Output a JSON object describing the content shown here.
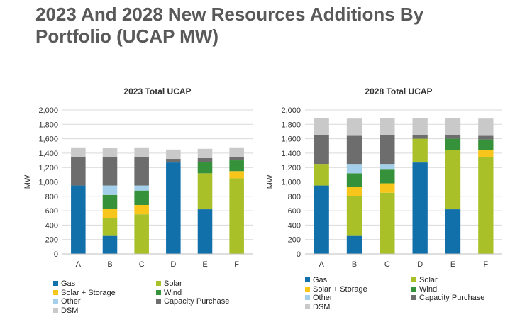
{
  "page": {
    "title": "2023 And 2028 New Resources Additions By Portfolio (UCAP MW)"
  },
  "colors": {
    "Gas": "#1170aa",
    "Solar": "#a9c028",
    "Solar + Storage": "#f8c61a",
    "Wind": "#35913a",
    "Other": "#a4cfea",
    "Capacity Purchase": "#6d6d6d",
    "DSM": "#c9c9c9"
  },
  "legend_order": [
    "Gas",
    "Solar",
    "Solar + Storage",
    "Wind",
    "Other",
    "Capacity Purchase",
    "DSM"
  ],
  "chart_data": [
    {
      "type": "bar",
      "stacked": true,
      "title": "2023 Total UCAP",
      "ylabel": "MW",
      "ylim": [
        0,
        2000
      ],
      "yticks": [
        "0",
        "200",
        "400",
        "600",
        "800",
        "1,000",
        "1,200",
        "1,400",
        "1,600",
        "1,800",
        "2,000"
      ],
      "grid": true,
      "legend_position": "bottom",
      "categories": [
        "A",
        "B",
        "C",
        "D",
        "E",
        "F"
      ],
      "series": [
        {
          "name": "Gas",
          "values": [
            950,
            250,
            0,
            1270,
            620,
            0
          ]
        },
        {
          "name": "Solar",
          "values": [
            0,
            250,
            550,
            0,
            500,
            1050
          ]
        },
        {
          "name": "Solar + Storage",
          "values": [
            0,
            130,
            130,
            0,
            0,
            100
          ]
        },
        {
          "name": "Wind",
          "values": [
            0,
            190,
            200,
            0,
            160,
            150
          ]
        },
        {
          "name": "Other",
          "values": [
            0,
            130,
            70,
            0,
            0,
            0
          ]
        },
        {
          "name": "Capacity Purchase",
          "values": [
            400,
            390,
            400,
            50,
            50,
            50
          ]
        },
        {
          "name": "DSM",
          "values": [
            130,
            130,
            130,
            130,
            130,
            130
          ]
        }
      ]
    },
    {
      "type": "bar",
      "stacked": true,
      "title": "2028 Total UCAP",
      "ylabel": "MW",
      "ylim": [
        0,
        2000
      ],
      "yticks": [
        "0",
        "200",
        "400",
        "600",
        "800",
        "1,000",
        "1,200",
        "1,400",
        "1,600",
        "1,800",
        "2,000"
      ],
      "grid": true,
      "legend_position": "bottom",
      "categories": [
        "A",
        "B",
        "C",
        "D",
        "E",
        "F"
      ],
      "series": [
        {
          "name": "Gas",
          "values": [
            950,
            250,
            0,
            1270,
            620,
            0
          ]
        },
        {
          "name": "Solar",
          "values": [
            300,
            550,
            850,
            330,
            820,
            1340
          ]
        },
        {
          "name": "Solar + Storage",
          "values": [
            0,
            130,
            130,
            0,
            0,
            100
          ]
        },
        {
          "name": "Wind",
          "values": [
            0,
            190,
            200,
            0,
            160,
            150
          ]
        },
        {
          "name": "Other",
          "values": [
            0,
            130,
            70,
            0,
            0,
            0
          ]
        },
        {
          "name": "Capacity Purchase",
          "values": [
            400,
            390,
            400,
            50,
            50,
            50
          ]
        },
        {
          "name": "DSM",
          "values": [
            240,
            240,
            240,
            240,
            240,
            240
          ]
        }
      ]
    }
  ]
}
